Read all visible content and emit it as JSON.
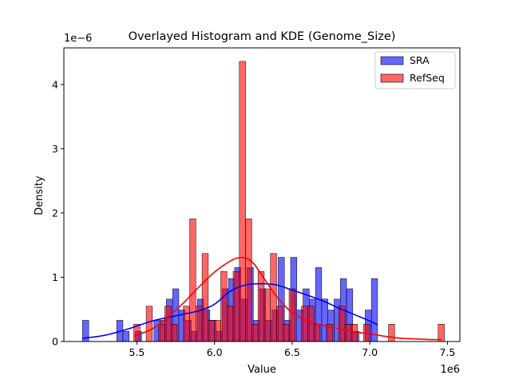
{
  "chart_data": {
    "type": "histogram",
    "title": "Overlayed Histogram and KDE (Genome_Size)",
    "xlabel": "Value",
    "ylabel": "Density",
    "x_offset_label": "1e6",
    "y_offset_label": "1e−6",
    "xlim": [
      5.03,
      7.58
    ],
    "ylim": [
      0,
      4.57
    ],
    "x_ticks": [
      5.5,
      6.0,
      6.5,
      7.0,
      7.5
    ],
    "x_tick_labels": [
      "5.5",
      "6.0",
      "6.5",
      "7.0",
      "7.5"
    ],
    "y_ticks": [
      0,
      1,
      2,
      3,
      4
    ],
    "y_tick_labels": [
      "0",
      "1",
      "2",
      "3",
      "4"
    ],
    "grid": false,
    "legend": {
      "position": "top-right"
    },
    "series": [
      {
        "name": "SRA",
        "color": "#0000ff",
        "bar_opacity": 0.6,
        "bins": [
          {
            "x0": 5.15,
            "x1": 5.19,
            "h": 0.33
          },
          {
            "x0": 5.37,
            "x1": 5.41,
            "h": 0.33
          },
          {
            "x0": 5.41,
            "x1": 5.45,
            "h": 0.16
          },
          {
            "x0": 5.49,
            "x1": 5.53,
            "h": 0.16
          },
          {
            "x0": 5.61,
            "x1": 5.65,
            "h": 0.33
          },
          {
            "x0": 5.65,
            "x1": 5.69,
            "h": 0.33
          },
          {
            "x0": 5.69,
            "x1": 5.73,
            "h": 0.66
          },
          {
            "x0": 5.73,
            "x1": 5.77,
            "h": 0.82
          },
          {
            "x0": 5.77,
            "x1": 5.81,
            "h": 0.49
          },
          {
            "x0": 5.81,
            "x1": 5.85,
            "h": 0.33
          },
          {
            "x0": 5.85,
            "x1": 5.89,
            "h": 0.16
          },
          {
            "x0": 5.89,
            "x1": 5.93,
            "h": 0.66
          },
          {
            "x0": 5.93,
            "x1": 5.97,
            "h": 0.49
          },
          {
            "x0": 5.97,
            "x1": 6.01,
            "h": 0.33
          },
          {
            "x0": 6.01,
            "x1": 6.05,
            "h": 0.16
          },
          {
            "x0": 6.05,
            "x1": 6.09,
            "h": 0.82
          },
          {
            "x0": 6.09,
            "x1": 6.13,
            "h": 0.98
          },
          {
            "x0": 6.13,
            "x1": 6.17,
            "h": 1.15
          },
          {
            "x0": 6.17,
            "x1": 6.21,
            "h": 0.66
          },
          {
            "x0": 6.21,
            "x1": 6.25,
            "h": 1.15
          },
          {
            "x0": 6.25,
            "x1": 6.29,
            "h": 0.33
          },
          {
            "x0": 6.29,
            "x1": 6.33,
            "h": 0.82
          },
          {
            "x0": 6.33,
            "x1": 6.37,
            "h": 0.33
          },
          {
            "x0": 6.37,
            "x1": 6.41,
            "h": 0.49
          },
          {
            "x0": 6.41,
            "x1": 6.45,
            "h": 1.31
          },
          {
            "x0": 6.45,
            "x1": 6.49,
            "h": 0.33
          },
          {
            "x0": 6.49,
            "x1": 6.53,
            "h": 1.31
          },
          {
            "x0": 6.53,
            "x1": 6.57,
            "h": 0.49
          },
          {
            "x0": 6.57,
            "x1": 6.61,
            "h": 0.82
          },
          {
            "x0": 6.61,
            "x1": 6.65,
            "h": 0.66
          },
          {
            "x0": 6.65,
            "x1": 6.69,
            "h": 1.15
          },
          {
            "x0": 6.69,
            "x1": 6.73,
            "h": 0.66
          },
          {
            "x0": 6.73,
            "x1": 6.77,
            "h": 0.49
          },
          {
            "x0": 6.77,
            "x1": 6.81,
            "h": 0.66
          },
          {
            "x0": 6.81,
            "x1": 6.85,
            "h": 0.98
          },
          {
            "x0": 6.85,
            "x1": 6.89,
            "h": 0.82
          },
          {
            "x0": 6.89,
            "x1": 6.93,
            "h": 0.16
          },
          {
            "x0": 6.97,
            "x1": 7.01,
            "h": 0.49
          },
          {
            "x0": 7.01,
            "x1": 7.05,
            "h": 0.98
          }
        ],
        "kde": {
          "x": [
            5.15,
            5.3,
            5.45,
            5.6,
            5.75,
            5.9,
            6.0,
            6.1,
            6.2,
            6.3,
            6.4,
            6.5,
            6.6,
            6.7,
            6.8,
            6.9,
            7.0,
            7.05
          ],
          "y": [
            0.05,
            0.1,
            0.2,
            0.32,
            0.4,
            0.48,
            0.58,
            0.78,
            0.88,
            0.9,
            0.88,
            0.8,
            0.72,
            0.63,
            0.52,
            0.42,
            0.32,
            0.26
          ]
        }
      },
      {
        "name": "RefSeq",
        "color": "#ff0000",
        "bar_opacity": 0.6,
        "bins": [
          {
            "x0": 5.48,
            "x1": 5.52,
            "h": 0.27
          },
          {
            "x0": 5.56,
            "x1": 5.6,
            "h": 0.55
          },
          {
            "x0": 5.64,
            "x1": 5.68,
            "h": 0.27
          },
          {
            "x0": 5.68,
            "x1": 5.72,
            "h": 0.55
          },
          {
            "x0": 5.72,
            "x1": 5.76,
            "h": 0.27
          },
          {
            "x0": 5.8,
            "x1": 5.84,
            "h": 0.55
          },
          {
            "x0": 5.84,
            "x1": 5.88,
            "h": 1.91
          },
          {
            "x0": 5.88,
            "x1": 5.92,
            "h": 0.55
          },
          {
            "x0": 5.92,
            "x1": 5.96,
            "h": 1.37
          },
          {
            "x0": 5.96,
            "x1": 6.0,
            "h": 0.33
          },
          {
            "x0": 6.0,
            "x1": 6.04,
            "h": 0.33
          },
          {
            "x0": 6.04,
            "x1": 6.08,
            "h": 1.09
          },
          {
            "x0": 6.08,
            "x1": 6.12,
            "h": 0.55
          },
          {
            "x0": 6.12,
            "x1": 6.16,
            "h": 1.09
          },
          {
            "x0": 6.16,
            "x1": 6.2,
            "h": 4.36
          },
          {
            "x0": 6.2,
            "x1": 6.24,
            "h": 1.91
          },
          {
            "x0": 6.24,
            "x1": 6.28,
            "h": 0.27
          },
          {
            "x0": 6.28,
            "x1": 6.32,
            "h": 1.09
          },
          {
            "x0": 6.32,
            "x1": 6.36,
            "h": 0.82
          },
          {
            "x0": 6.36,
            "x1": 6.4,
            "h": 1.37
          },
          {
            "x0": 6.4,
            "x1": 6.44,
            "h": 0.55
          },
          {
            "x0": 6.44,
            "x1": 6.48,
            "h": 0.27
          },
          {
            "x0": 6.48,
            "x1": 6.52,
            "h": 0.82
          },
          {
            "x0": 6.56,
            "x1": 6.6,
            "h": 0.55
          },
          {
            "x0": 6.6,
            "x1": 6.64,
            "h": 0.55
          },
          {
            "x0": 6.64,
            "x1": 6.68,
            "h": 0.27
          },
          {
            "x0": 6.72,
            "x1": 6.76,
            "h": 0.27
          },
          {
            "x0": 6.8,
            "x1": 6.84,
            "h": 0.55
          },
          {
            "x0": 6.84,
            "x1": 6.88,
            "h": 0.27
          },
          {
            "x0": 6.88,
            "x1": 6.92,
            "h": 0.27
          },
          {
            "x0": 6.96,
            "x1": 7.0,
            "h": 0.27
          },
          {
            "x0": 7.12,
            "x1": 7.16,
            "h": 0.27
          },
          {
            "x0": 7.44,
            "x1": 7.48,
            "h": 0.27
          }
        ],
        "kde": {
          "x": [
            5.48,
            5.6,
            5.7,
            5.8,
            5.9,
            6.0,
            6.1,
            6.15,
            6.2,
            6.25,
            6.3,
            6.4,
            6.5,
            6.6,
            6.7,
            6.8,
            6.9,
            7.0,
            7.1,
            7.2,
            7.3,
            7.4,
            7.46
          ],
          "y": [
            0.08,
            0.2,
            0.38,
            0.6,
            0.85,
            1.08,
            1.25,
            1.3,
            1.3,
            1.22,
            1.05,
            0.7,
            0.45,
            0.32,
            0.25,
            0.2,
            0.15,
            0.12,
            0.08,
            0.05,
            0.04,
            0.03,
            0.03
          ]
        }
      }
    ]
  }
}
